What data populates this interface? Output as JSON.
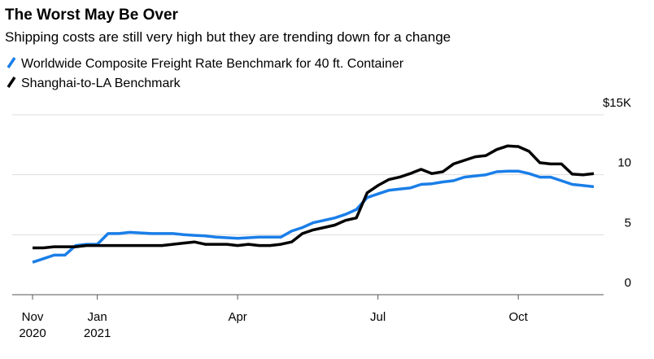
{
  "chart_data": {
    "type": "line",
    "title": "The Worst May Be Over",
    "subtitle": "Shipping costs are still very high but they are trending down for a change",
    "categories": [
      "Nov 2020",
      null,
      null,
      null,
      null,
      null,
      "Jan 2021",
      null,
      null,
      null,
      null,
      null,
      null,
      null,
      null,
      null,
      null,
      null,
      null,
      "Apr",
      null,
      null,
      null,
      null,
      null,
      null,
      null,
      null,
      null,
      null,
      null,
      null,
      "Jul",
      null,
      null,
      null,
      null,
      null,
      null,
      null,
      null,
      null,
      null,
      null,
      null,
      "Oct",
      null,
      null,
      null,
      null,
      null,
      null,
      null
    ],
    "series": [
      {
        "name": "Worldwide Composite Freight Rate Benchmark for 40 ft. Container",
        "color": "#1a7ee8",
        "values": [
          2.7,
          3.0,
          3.3,
          3.3,
          4.1,
          4.2,
          4.2,
          5.1,
          5.1,
          5.2,
          5.15,
          5.1,
          5.1,
          5.1,
          5.0,
          4.95,
          4.9,
          4.8,
          4.75,
          4.7,
          4.75,
          4.8,
          4.8,
          4.8,
          5.3,
          5.6,
          6.0,
          6.2,
          6.4,
          6.7,
          7.1,
          8.1,
          8.4,
          8.7,
          8.8,
          8.9,
          9.2,
          9.25,
          9.4,
          9.5,
          9.8,
          9.9,
          10.0,
          10.25,
          10.3,
          10.3,
          10.1,
          9.8,
          9.8,
          9.5,
          9.2,
          9.1,
          9.0
        ]
      },
      {
        "name": "Shanghai-to-LA Benchmark",
        "color": "#000000",
        "values": [
          3.9,
          3.9,
          4.0,
          4.0,
          4.0,
          4.1,
          4.1,
          4.1,
          4.1,
          4.1,
          4.1,
          4.1,
          4.1,
          4.2,
          4.3,
          4.4,
          4.2,
          4.2,
          4.2,
          4.1,
          4.2,
          4.1,
          4.1,
          4.2,
          4.4,
          5.1,
          5.4,
          5.6,
          5.8,
          6.2,
          6.4,
          8.5,
          9.1,
          9.6,
          9.8,
          10.1,
          10.45,
          10.1,
          10.25,
          10.9,
          11.2,
          11.5,
          11.6,
          12.1,
          12.4,
          12.35,
          11.95,
          11.0,
          10.9,
          10.9,
          10.05,
          10.0,
          10.1
        ]
      }
    ],
    "ylim": [
      0,
      15
    ],
    "yticks": [
      0,
      5,
      10,
      {
        "value": 15,
        "label": "$15K"
      }
    ],
    "grid": true
  }
}
